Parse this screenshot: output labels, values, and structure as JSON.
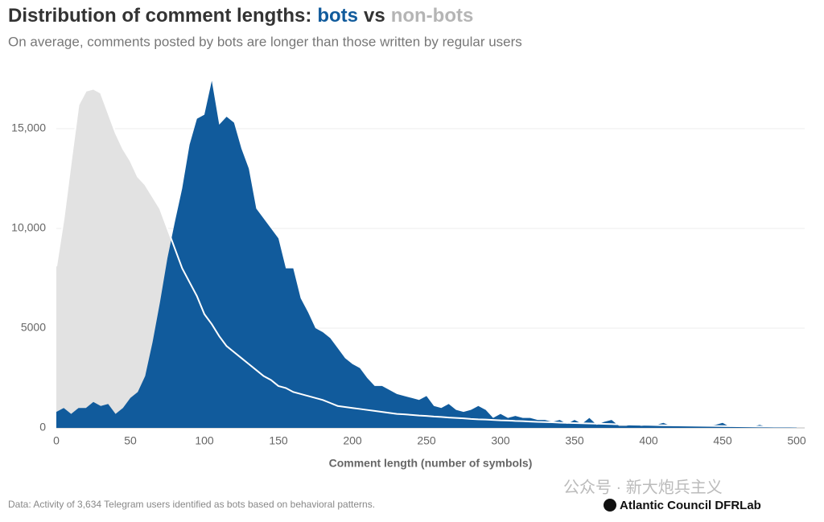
{
  "chart_data": {
    "type": "area",
    "title": "Distribution of comment lengths:",
    "title_joiner": "vs",
    "subtitle": "On average, comments posted by bots are longer than those written by regular users",
    "x_label": "Comment length (number of symbols)",
    "source": "Data: Activity of 3,634 Telegram users identified as bots based on behavioral patterns.",
    "logo": "Atlantic Council DFRLab",
    "watermark": "公众号 · 新大炮兵主义",
    "x": [
      0,
      5,
      10,
      15,
      20,
      25,
      30,
      35,
      40,
      45,
      50,
      55,
      60,
      65,
      70,
      75,
      80,
      85,
      90,
      95,
      100,
      105,
      110,
      115,
      120,
      125,
      130,
      135,
      140,
      145,
      150,
      155,
      160,
      165,
      170,
      175,
      180,
      185,
      190,
      195,
      200,
      205,
      210,
      215,
      220,
      225,
      230,
      235,
      240,
      245,
      250,
      255,
      260,
      265,
      270,
      275,
      280,
      285,
      290,
      295,
      300,
      305,
      310,
      315,
      320,
      325,
      330,
      335,
      340,
      345,
      350,
      355,
      360,
      365,
      370,
      375,
      380,
      385,
      390,
      395,
      400,
      405,
      410,
      415,
      420,
      425,
      430,
      435,
      440,
      445,
      450,
      455,
      460,
      465,
      470,
      475,
      480,
      485,
      490,
      495,
      500
    ],
    "series": [
      {
        "name": "bots",
        "color": "#115b9c",
        "values": [
          800,
          1000,
          700,
          1000,
          1000,
          1300,
          1100,
          1200,
          700,
          1000,
          1500,
          1800,
          2600,
          4300,
          6300,
          8500,
          10300,
          12000,
          14200,
          15500,
          15700,
          17400,
          15200,
          15600,
          15300,
          14000,
          13000,
          11000,
          10500,
          10000,
          9500,
          8000,
          8000,
          6500,
          5800,
          5000,
          4800,
          4500,
          4000,
          3500,
          3200,
          3000,
          2500,
          2100,
          2100,
          1900,
          1700,
          1600,
          1500,
          1400,
          1600,
          1100,
          1000,
          1200,
          900,
          800,
          900,
          1100,
          900,
          500,
          700,
          500,
          600,
          500,
          500,
          400,
          400,
          300,
          400,
          200,
          400,
          200,
          500,
          150,
          300,
          400,
          100,
          100,
          200,
          100,
          150,
          150,
          250,
          100,
          150,
          100,
          100,
          100,
          100,
          150,
          250,
          50,
          100,
          100,
          50,
          150,
          50,
          100,
          50,
          50,
          50
        ]
      },
      {
        "name": "non-bots",
        "color": "#e2e2e2",
        "line_color": "#ffffff",
        "values": [
          8100,
          10500,
          13400,
          16200,
          16900,
          17000,
          16800,
          15800,
          14800,
          14000,
          13400,
          12600,
          12200,
          11600,
          11000,
          10000,
          9000,
          8000,
          7300,
          6600,
          5700,
          5200,
          4600,
          4100,
          3800,
          3500,
          3200,
          2900,
          2600,
          2400,
          2100,
          2000,
          1800,
          1700,
          1600,
          1500,
          1400,
          1250,
          1100,
          1050,
          1000,
          950,
          900,
          850,
          800,
          750,
          700,
          680,
          650,
          620,
          600,
          570,
          550,
          520,
          500,
          480,
          450,
          430,
          420,
          400,
          380,
          370,
          350,
          340,
          320,
          300,
          290,
          280,
          260,
          250,
          240,
          230,
          220,
          210,
          200,
          190,
          180,
          170,
          160,
          155,
          150,
          140,
          130,
          125,
          120,
          115,
          110,
          105,
          100,
          95,
          90,
          85,
          80,
          75,
          70,
          68,
          65,
          62,
          60,
          58,
          55
        ]
      }
    ],
    "xlim": [
      0,
      500
    ],
    "xticks": [
      0,
      50,
      100,
      150,
      200,
      250,
      300,
      350,
      400,
      450,
      500
    ],
    "ylim": [
      0,
      17500
    ],
    "yticks": [
      0,
      5000,
      {
        "value": 10000,
        "label": "10,000"
      },
      {
        "value": 15000,
        "label": "15,000"
      }
    ],
    "grid": true
  }
}
